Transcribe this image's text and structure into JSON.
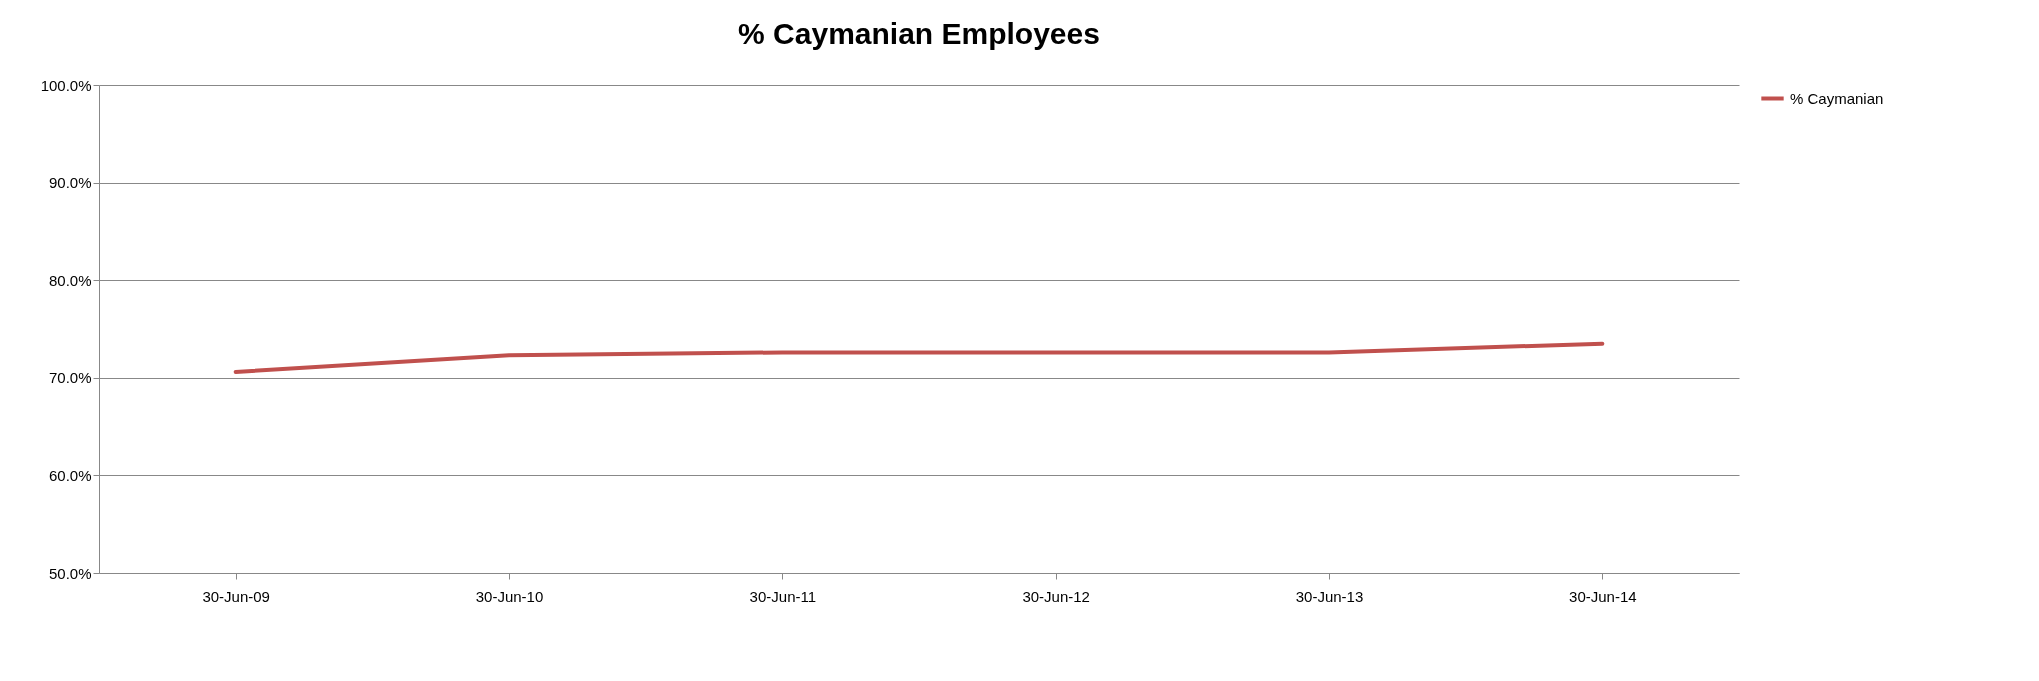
{
  "chart_data": {
    "type": "line",
    "title": "% Caymanian Employees",
    "categories": [
      "30-Jun-09",
      "30-Jun-10",
      "30-Jun-11",
      "30-Jun-12",
      "30-Jun-13",
      "30-Jun-14"
    ],
    "series": [
      {
        "name": "% Caymanian",
        "color": "#c0504d",
        "values": [
          70.6,
          72.3,
          72.6,
          72.6,
          72.6,
          73.5
        ]
      }
    ],
    "ylim": [
      50,
      100
    ],
    "yticks": [
      {
        "value": 50,
        "label": "50.0%"
      },
      {
        "value": 60,
        "label": "60.0%"
      },
      {
        "value": 70,
        "label": "70.0%"
      },
      {
        "value": 80,
        "label": "80.0%"
      },
      {
        "value": 90,
        "label": "90.0%"
      },
      {
        "value": 100,
        "label": "100.0%"
      }
    ],
    "grid": "y",
    "legend": "right",
    "marker": "none",
    "line_style": "solid"
  }
}
